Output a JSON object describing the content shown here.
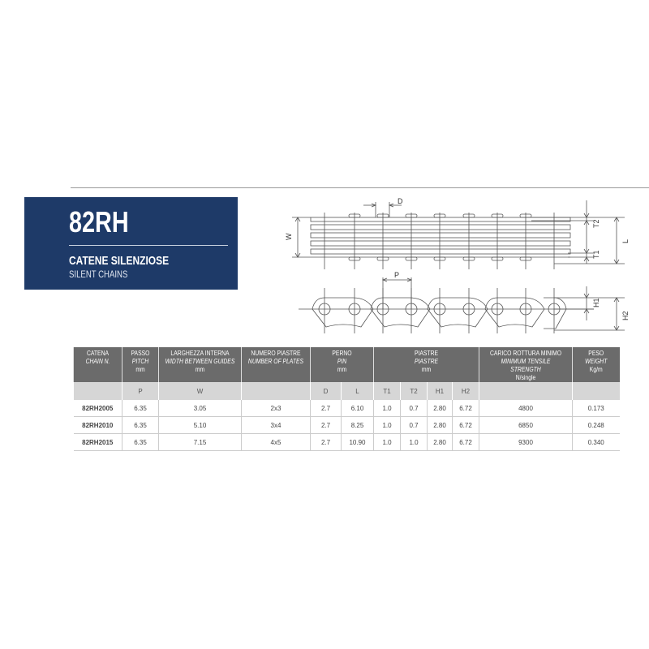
{
  "hero": {
    "code": "82RH",
    "title_it": "CATENE SILENZIOSE",
    "title_en": "SILENT CHAINS",
    "color": "#1e3a68"
  },
  "diagram": {
    "labels": {
      "D": "D",
      "W": "W",
      "T2": "T2",
      "L": "L",
      "T1": "T1",
      "P": "P",
      "H1": "H1",
      "H2": "H2"
    }
  },
  "table": {
    "headers": [
      {
        "it": "CATENA",
        "en": "CHAIN N.",
        "unit": ""
      },
      {
        "it": "PASSO",
        "en": "PITCH",
        "unit": "mm"
      },
      {
        "it": "LARGHEZZA INTERNA",
        "en": "WIDTH BETWEEN GUIDES",
        "unit": "mm"
      },
      {
        "it": "NUMERO PIASTRE",
        "en": "NUMBER OF PLATES",
        "unit": ""
      },
      {
        "it": "PERNO",
        "en": "PIN",
        "unit": "mm"
      },
      {
        "it": "PIASTRE",
        "en": "PIASTRE",
        "unit": "mm"
      },
      {
        "it": "CARICO ROTTURA MINIMO",
        "en": "MINIMUM TENSILE STRENGTH",
        "unit": "N/single"
      },
      {
        "it": "PESO",
        "en": "WEIGHT",
        "unit": "Kg/m"
      }
    ],
    "subheaders": [
      "",
      "P",
      "W",
      "",
      "D",
      "L",
      "T1",
      "T2",
      "H1",
      "H2",
      "",
      ""
    ],
    "rows": [
      [
        "82RH2005",
        "6.35",
        "3.05",
        "2x3",
        "2.7",
        "6.10",
        "1.0",
        "0.7",
        "2.80",
        "6.72",
        "4800",
        "0.173"
      ],
      [
        "82RH2010",
        "6.35",
        "5.10",
        "3x4",
        "2.7",
        "8.25",
        "1.0",
        "0.7",
        "2.80",
        "6.72",
        "6850",
        "0.248"
      ],
      [
        "82RH2015",
        "6.35",
        "7.15",
        "4x5",
        "2.7",
        "10.90",
        "1.0",
        "1.0",
        "2.80",
        "6.72",
        "9300",
        "0.340"
      ]
    ]
  }
}
